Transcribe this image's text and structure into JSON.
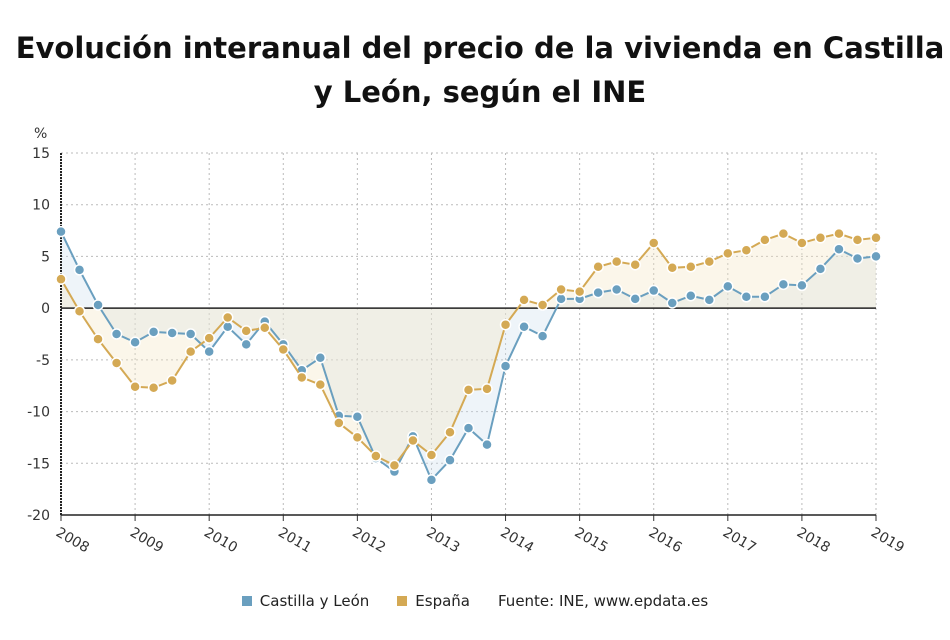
{
  "chart_data": {
    "type": "line",
    "title": "Evolución interanual del precio de la vivienda en Castilla y León, según el INE",
    "ylabel": "%",
    "ylim": [
      -20,
      15
    ],
    "yticks": [
      15,
      10,
      5,
      0,
      -5,
      -10,
      -15,
      -20
    ],
    "xticks": [
      "2008",
      "2009",
      "2010",
      "2011",
      "2012",
      "2013",
      "2014",
      "2015",
      "2016",
      "2017",
      "2018",
      "2019"
    ],
    "grid": true,
    "legend": "bottom",
    "source": "Fuente: INE, www.epdata.es",
    "series": [
      {
        "name": "Castilla y León",
        "color": "#6a9fbf",
        "values": [
          7.4,
          3.7,
          0.3,
          -2.5,
          -3.3,
          -2.3,
          -2.4,
          -2.5,
          -4.2,
          -1.8,
          -3.5,
          -1.3,
          -3.5,
          -6.0,
          -4.8,
          -10.4,
          -10.5,
          -14.5,
          -15.8,
          -12.4,
          -16.6,
          -14.7,
          -11.6,
          -13.2,
          -5.6,
          -1.8,
          -2.7,
          0.9,
          0.9,
          1.5,
          1.8,
          0.9,
          1.7,
          0.5,
          1.2,
          0.8,
          2.1,
          1.1,
          1.1,
          2.3,
          2.2,
          3.8,
          5.7,
          4.8,
          5.0
        ]
      },
      {
        "name": "España",
        "color": "#d4a954",
        "values": [
          2.8,
          -0.3,
          -3.0,
          -5.3,
          -7.6,
          -7.7,
          -7.0,
          -4.2,
          -2.9,
          -0.9,
          -2.2,
          -1.9,
          -4.0,
          -6.7,
          -7.4,
          -11.1,
          -12.5,
          -14.3,
          -15.2,
          -12.8,
          -14.2,
          -12.0,
          -7.9,
          -7.8,
          -1.6,
          0.8,
          0.3,
          1.8,
          1.6,
          4.0,
          4.5,
          4.2,
          6.3,
          3.9,
          4.0,
          4.5,
          5.3,
          5.6,
          6.6,
          7.2,
          6.3,
          6.8,
          7.2,
          6.6,
          6.8
        ]
      }
    ]
  }
}
